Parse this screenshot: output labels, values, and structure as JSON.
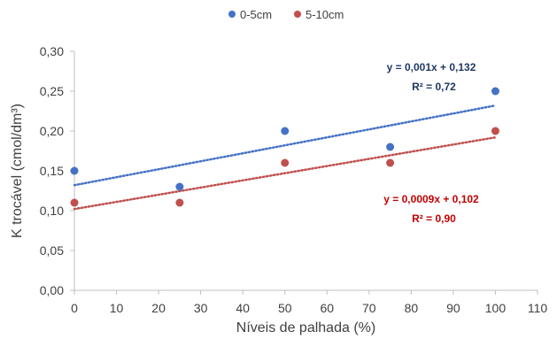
{
  "chart_data": {
    "type": "scatter",
    "xlabel": "Níveis de palhada (%)",
    "ylabel": "K trocável (cmol/dm³)",
    "xlim": [
      0,
      110
    ],
    "ylim": [
      0,
      0.3
    ],
    "xticks": [
      0,
      10,
      20,
      30,
      40,
      50,
      60,
      70,
      80,
      90,
      100,
      110
    ],
    "yticks": [
      0,
      0.05,
      0.1,
      0.15,
      0.2,
      0.25,
      0.3
    ],
    "xtick_labels": [
      "0",
      "10",
      "20",
      "30",
      "40",
      "50",
      "60",
      "70",
      "80",
      "90",
      "100",
      "110"
    ],
    "ytick_labels": [
      "0,00",
      "0,05",
      "0,10",
      "0,15",
      "0,20",
      "0,25",
      "0,30"
    ],
    "grid": false,
    "legend_position": "top",
    "series": [
      {
        "name": "0-5cm",
        "color": "#4472C4",
        "x": [
          0,
          25,
          50,
          75,
          100
        ],
        "y": [
          0.15,
          0.13,
          0.2,
          0.18,
          0.25
        ],
        "trendline": {
          "slope": 0.001,
          "intercept": 0.132,
          "style": "dotted"
        },
        "equation": "y = 0,001x  + 0,132",
        "r2": "R² = 0,72",
        "label_color": "#1F3864"
      },
      {
        "name": "5-10cm",
        "color": "#C0504D",
        "x": [
          0,
          25,
          50,
          75,
          100
        ],
        "y": [
          0.11,
          0.11,
          0.16,
          0.16,
          0.2
        ],
        "trendline": {
          "slope": 0.0009,
          "intercept": 0.102,
          "style": "dotted"
        },
        "equation": "y = 0,0009x  + 0,102",
        "r2": "R² = 0,90",
        "label_color": "#C00000"
      }
    ]
  }
}
